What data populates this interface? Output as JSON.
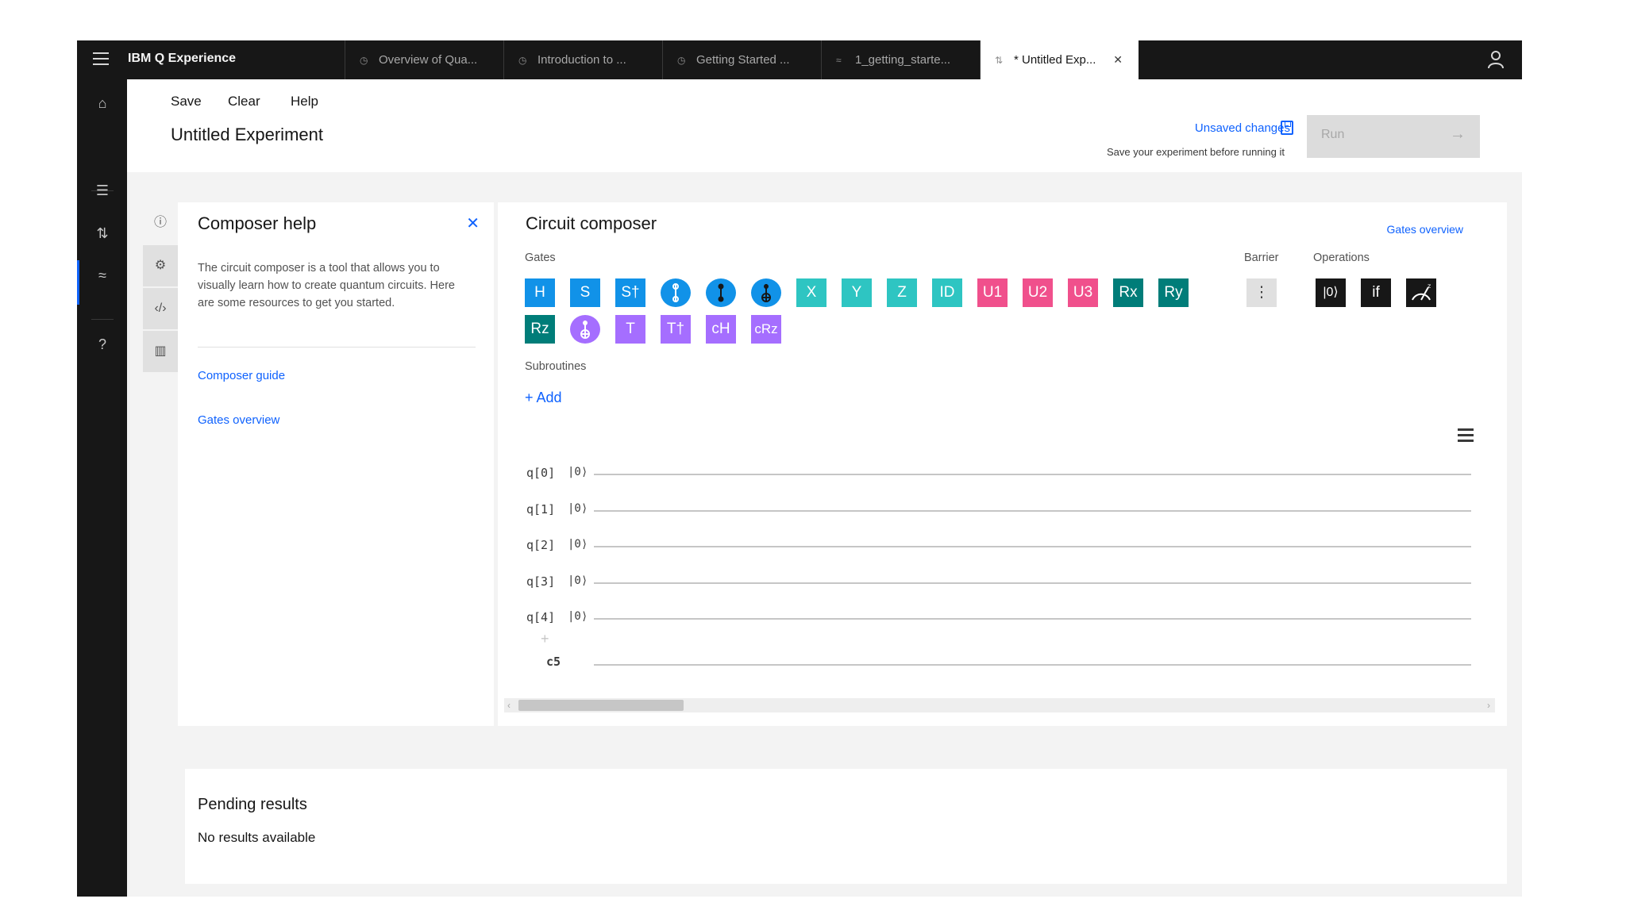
{
  "app": {
    "brand": "IBM Q Experience"
  },
  "tabs": [
    {
      "label": "Overview of Qua...",
      "icon": "clock-icon"
    },
    {
      "label": "Introduction to ...",
      "icon": "clock-icon"
    },
    {
      "label": "Getting Started ...",
      "icon": "clock-icon"
    },
    {
      "label": "1_getting_starte...",
      "icon": "notebook-icon"
    },
    {
      "label": "* Untitled Exp...",
      "icon": "composer-icon",
      "active": true
    }
  ],
  "toolbar": {
    "save": "Save",
    "clear": "Clear",
    "help": "Help"
  },
  "experiment": {
    "title": "Untitled Experiment"
  },
  "status": {
    "unsaved": "Unsaved changes",
    "hint": "Save your experiment before running it"
  },
  "run": {
    "label": "Run"
  },
  "help_panel": {
    "title": "Composer help",
    "description": "The circuit composer is a tool that allows you to visually learn how to create quantum circuits. Here are some resources to get you started.",
    "links": [
      "Composer guide",
      "Gates overview"
    ]
  },
  "composer": {
    "title": "Circuit composer",
    "gates_overview": "Gates overview",
    "gates_label": "Gates",
    "barrier_label": "Barrier",
    "operations_label": "Operations",
    "subroutines_label": "Subroutines",
    "add_label": "+ Add",
    "gates_row1": [
      "H",
      "S",
      "S†",
      "",
      "",
      "",
      "X",
      "Y",
      "Z",
      "ID",
      "U1",
      "U2",
      "U3",
      "Rx",
      "Ry"
    ],
    "gates_row2": [
      "Rz",
      "",
      "T",
      "T†",
      "cH",
      "cRz"
    ],
    "operations": [
      "|0⟩",
      "if",
      ""
    ],
    "qubits": [
      {
        "label": "q[0]",
        "ket": "|0⟩"
      },
      {
        "label": "q[1]",
        "ket": "|0⟩"
      },
      {
        "label": "q[2]",
        "ket": "|0⟩"
      },
      {
        "label": "q[3]",
        "ket": "|0⟩"
      },
      {
        "label": "q[4]",
        "ket": "|0⟩"
      }
    ],
    "classical": "c5"
  },
  "pending": {
    "title": "Pending results",
    "empty": "No results available"
  },
  "colors": {
    "blue": "#1192e8",
    "teal": "#2ec5c2",
    "pink": "#f0508c",
    "darkteal": "#007d79",
    "purple": "#a56eff",
    "black": "#171717",
    "accent": "#0f62fe"
  }
}
